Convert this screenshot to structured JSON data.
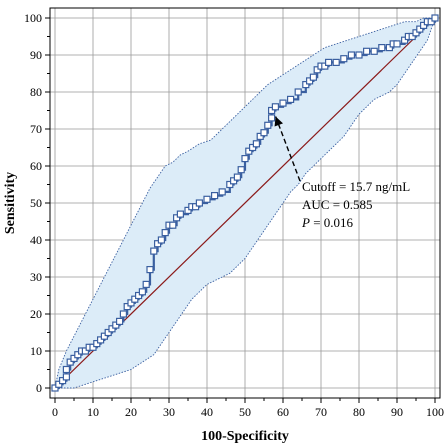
{
  "chart_data": {
    "type": "line",
    "xlabel": "100-Specificity",
    "ylabel": "Sensitivity",
    "xlim": [
      0,
      100
    ],
    "ylim": [
      0,
      100
    ],
    "x_ticks": [
      "0",
      "10",
      "20",
      "30",
      "40",
      "50",
      "60",
      "70",
      "80",
      "90",
      "100"
    ],
    "y_ticks": [
      "0",
      "10",
      "20",
      "30",
      "40",
      "50",
      "60",
      "70",
      "80",
      "90",
      "100"
    ],
    "grid": true,
    "series": [
      {
        "role": "roc_curve",
        "marker": "square",
        "color": "#3a5fa0",
        "points": [
          [
            0,
            0
          ],
          [
            1,
            1
          ],
          [
            2,
            2
          ],
          [
            3,
            3
          ],
          [
            3,
            5
          ],
          [
            4,
            7
          ],
          [
            5,
            8
          ],
          [
            6,
            9
          ],
          [
            7,
            10
          ],
          [
            8,
            10
          ],
          [
            9,
            11
          ],
          [
            10,
            11
          ],
          [
            11,
            12
          ],
          [
            12,
            13
          ],
          [
            13,
            14
          ],
          [
            14,
            15
          ],
          [
            15,
            16
          ],
          [
            16,
            17
          ],
          [
            17,
            18
          ],
          [
            18,
            20
          ],
          [
            19,
            22
          ],
          [
            20,
            23
          ],
          [
            21,
            24
          ],
          [
            22,
            25
          ],
          [
            23,
            26
          ],
          [
            24,
            28
          ],
          [
            25,
            32
          ],
          [
            26,
            37
          ],
          [
            27,
            39
          ],
          [
            28,
            40
          ],
          [
            29,
            42
          ],
          [
            30,
            44
          ],
          [
            31,
            44
          ],
          [
            32,
            46
          ],
          [
            33,
            47
          ],
          [
            35,
            48
          ],
          [
            36,
            49
          ],
          [
            37,
            49
          ],
          [
            38,
            50
          ],
          [
            40,
            51
          ],
          [
            42,
            52
          ],
          [
            44,
            53
          ],
          [
            46,
            55
          ],
          [
            47,
            56
          ],
          [
            48,
            57
          ],
          [
            49,
            59
          ],
          [
            50,
            62
          ],
          [
            51,
            64
          ],
          [
            52,
            65
          ],
          [
            53,
            66
          ],
          [
            54,
            68
          ],
          [
            55,
            69
          ],
          [
            56,
            71
          ],
          [
            57,
            73
          ],
          [
            57,
            75
          ],
          [
            58,
            76
          ],
          [
            60,
            77
          ],
          [
            62,
            78
          ],
          [
            64,
            80
          ],
          [
            66,
            82
          ],
          [
            67,
            83
          ],
          [
            68,
            84
          ],
          [
            69,
            86
          ],
          [
            70,
            87
          ],
          [
            71,
            87
          ],
          [
            72,
            88
          ],
          [
            74,
            88
          ],
          [
            76,
            89
          ],
          [
            78,
            90
          ],
          [
            80,
            90
          ],
          [
            82,
            91
          ],
          [
            84,
            91
          ],
          [
            86,
            92
          ],
          [
            88,
            92
          ],
          [
            89,
            93
          ],
          [
            90,
            93
          ],
          [
            92,
            94
          ],
          [
            93,
            95
          ],
          [
            94,
            95
          ],
          [
            95,
            96
          ],
          [
            96,
            97
          ],
          [
            97,
            98
          ],
          [
            98,
            99
          ],
          [
            99,
            99
          ],
          [
            100,
            100
          ]
        ]
      },
      {
        "role": "ci_upper",
        "color": "#3a5fa0",
        "points": [
          [
            0,
            0
          ],
          [
            1,
            5
          ],
          [
            3,
            10
          ],
          [
            5,
            14
          ],
          [
            7,
            18
          ],
          [
            9,
            22
          ],
          [
            11,
            26
          ],
          [
            13,
            30
          ],
          [
            15,
            34
          ],
          [
            17,
            38
          ],
          [
            19,
            42
          ],
          [
            21,
            46
          ],
          [
            23,
            50
          ],
          [
            25,
            54
          ],
          [
            27,
            57
          ],
          [
            29,
            60
          ],
          [
            31,
            61
          ],
          [
            33,
            63
          ],
          [
            35,
            64
          ],
          [
            38,
            66
          ],
          [
            41,
            67
          ],
          [
            44,
            70
          ],
          [
            47,
            73
          ],
          [
            50,
            76
          ],
          [
            53,
            79
          ],
          [
            56,
            82
          ],
          [
            59,
            84
          ],
          [
            62,
            86
          ],
          [
            65,
            88
          ],
          [
            68,
            90
          ],
          [
            71,
            92
          ],
          [
            74,
            93
          ],
          [
            77,
            94
          ],
          [
            80,
            95
          ],
          [
            83,
            96
          ],
          [
            86,
            97
          ],
          [
            89,
            98
          ],
          [
            92,
            99
          ],
          [
            95,
            99
          ],
          [
            97,
            100
          ],
          [
            100,
            100
          ]
        ]
      },
      {
        "role": "ci_lower",
        "color": "#3a5fa0",
        "points": [
          [
            0,
            0
          ],
          [
            5,
            0
          ],
          [
            8,
            1
          ],
          [
            11,
            2
          ],
          [
            14,
            3
          ],
          [
            17,
            4
          ],
          [
            20,
            5
          ],
          [
            23,
            7
          ],
          [
            26,
            9
          ],
          [
            28,
            12
          ],
          [
            30,
            15
          ],
          [
            32,
            18
          ],
          [
            34,
            21
          ],
          [
            36,
            24
          ],
          [
            38,
            26
          ],
          [
            40,
            28
          ],
          [
            42,
            29
          ],
          [
            44,
            30
          ],
          [
            46,
            31
          ],
          [
            48,
            33
          ],
          [
            50,
            35
          ],
          [
            52,
            38
          ],
          [
            54,
            41
          ],
          [
            56,
            44
          ],
          [
            58,
            47
          ],
          [
            60,
            50
          ],
          [
            62,
            53
          ],
          [
            64,
            55
          ],
          [
            66,
            58
          ],
          [
            68,
            60
          ],
          [
            70,
            62
          ],
          [
            72,
            64
          ],
          [
            74,
            66
          ],
          [
            76,
            68
          ],
          [
            78,
            71
          ],
          [
            80,
            74
          ],
          [
            82,
            76
          ],
          [
            84,
            78
          ],
          [
            86,
            79
          ],
          [
            88,
            80
          ],
          [
            90,
            82
          ],
          [
            92,
            85
          ],
          [
            94,
            88
          ],
          [
            96,
            91
          ],
          [
            98,
            94
          ],
          [
            100,
            100
          ]
        ]
      },
      {
        "role": "diagonal_reference",
        "color": "#8b1a1a",
        "points": [
          [
            0,
            0
          ],
          [
            100,
            100
          ]
        ]
      }
    ],
    "annotation": {
      "lines": [
        {
          "text": "Cutoff = 15.7 ng/mL",
          "italic": false
        },
        {
          "text": "AUC = 0.585",
          "italic": false
        },
        {
          "text": "P = 0.016",
          "italic": true
        }
      ],
      "points_to": [
        57,
        75
      ]
    },
    "colors": {
      "ci_fill": "#dcecf8",
      "grid": "#999999",
      "curve": "#3a5fa0",
      "diagonal": "#8b1a1a"
    }
  }
}
